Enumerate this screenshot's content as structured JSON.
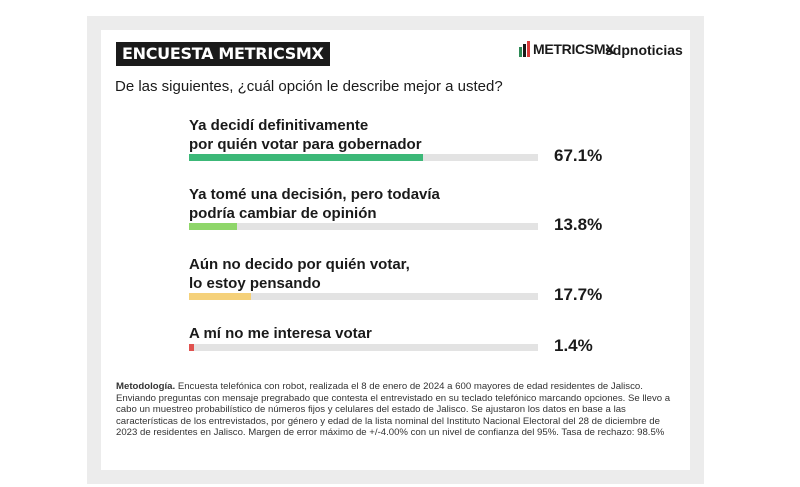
{
  "header": {
    "title": "ENCUESTA METRICSMX",
    "brand_metrics": "METRICSMX",
    "brand_sdp": "sdpnoticias"
  },
  "chart_data": {
    "type": "bar",
    "title": "De las siguientes, ¿cuál opción le describe mejor a usted?",
    "categories": [
      [
        "Ya decidí definitivamente",
        "por quién votar para gobernador"
      ],
      [
        "Ya tomé una decisión, pero todavía",
        "podría cambiar de opinión"
      ],
      [
        "Aún no decido por quién votar,",
        "lo estoy pensando"
      ],
      [
        "A mí no me interesa votar"
      ]
    ],
    "values": [
      67.1,
      13.8,
      17.7,
      1.4
    ],
    "value_labels": [
      "67.1%",
      "13.8%",
      "17.7%",
      "1.4%"
    ],
    "colors": [
      "#3cb878",
      "#8fd66a",
      "#f5d17a",
      "#e0524f"
    ],
    "track_color": "#e3e3e3",
    "xlim": [
      0,
      100
    ]
  },
  "methodology": {
    "label": "Metodología.",
    "text": " Encuesta telefónica con robot, realizada el 8 de enero de 2024 a 600 mayores de edad residentes de Jalisco. Enviando preguntas con mensaje pregrabado que contesta el entrevistado en su teclado telefónico marcando opciones. Se llevo a cabo un muestreo probabilístico de números fijos y celulares del estado de Jalisco. Se ajustaron los datos en base a las características de los entrevistados, por género y edad de la lista nominal del Instituto Nacional Electoral del 28 de diciembre de 2023 de residentes en Jalisco. Margen de error máximo de +/-4.00% con un nivel de confianza del 95%. Tasa de rechazo: 98.5%"
  }
}
